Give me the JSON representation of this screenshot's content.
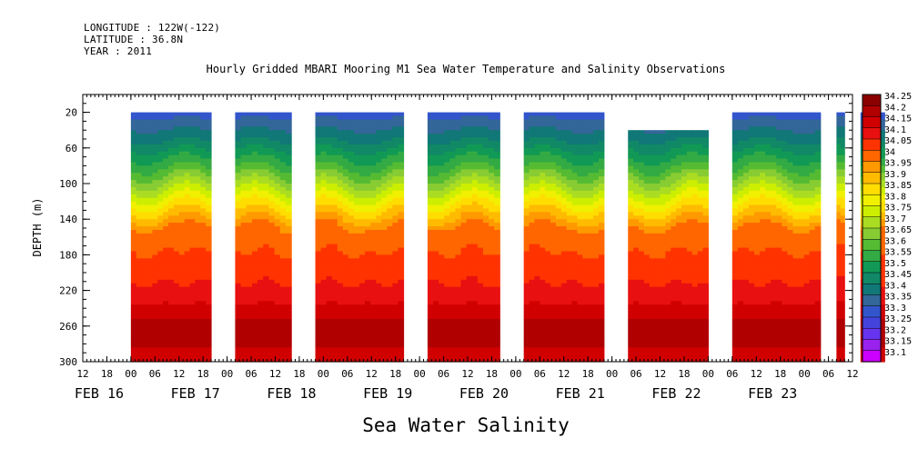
{
  "header": {
    "longitude": "LONGITUDE : 122W(-122)",
    "latitude": "LATITUDE : 36.8N",
    "year": "YEAR : 2011"
  },
  "chart_data": {
    "type": "heatmap",
    "title": "Hourly Gridded MBARI Mooring M1 Sea Water Temperature and Salinity Observations",
    "xlabel": "Sea Water Salinity",
    "ylabel": "DEPTH (m)",
    "ylim": [
      300,
      0
    ],
    "yticks": [
      "20",
      "60",
      "100",
      "140",
      "180",
      "220",
      "260",
      "300"
    ],
    "y_values": [
      20,
      60,
      100,
      140,
      180,
      220,
      260,
      300
    ],
    "x_hour_ticks": [
      "12",
      "18",
      "00",
      "06",
      "12",
      "18",
      "00",
      "06",
      "12",
      "18",
      "00",
      "06",
      "12",
      "18",
      "00",
      "06",
      "12",
      "18",
      "00",
      "06",
      "12",
      "18",
      "00",
      "06",
      "12",
      "18",
      "00",
      "06",
      "12",
      "18",
      "00",
      "06",
      "12"
    ],
    "date_labels": [
      {
        "label": "FEB 16",
        "day": 0
      },
      {
        "label": "FEB 17",
        "day": 1
      },
      {
        "label": "FEB 18",
        "day": 2
      },
      {
        "label": "FEB 19",
        "day": 3
      },
      {
        "label": "FEB 20",
        "day": 4
      },
      {
        "label": "FEB 21",
        "day": 5
      },
      {
        "label": "FEB 22",
        "day": 6
      },
      {
        "label": "FEB 23",
        "day": 7
      }
    ],
    "x_start_hours_before_feb16": -12,
    "x_end_hours_after_feb23": 12,
    "data_segments_hours": [
      {
        "start": 24,
        "end": 44,
        "top_depth": 20
      },
      {
        "start": 50,
        "end": 64,
        "top_depth": 20
      },
      {
        "start": 70,
        "end": 92,
        "top_depth": 20
      },
      {
        "start": 98,
        "end": 116,
        "top_depth": 20
      },
      {
        "start": 122,
        "end": 142,
        "top_depth": 20
      },
      {
        "start": 148,
        "end": 168,
        "top_depth": 40
      },
      {
        "start": 174,
        "end": 196,
        "top_depth": 20
      },
      {
        "start": 200,
        "end": 202,
        "top_depth": 20
      },
      {
        "start": 206,
        "end": 212,
        "top_depth": 20
      }
    ],
    "salinity_profile": [
      {
        "depth": 20,
        "value": 33.33
      },
      {
        "depth": 50,
        "value": 33.45
      },
      {
        "depth": 80,
        "value": 33.6
      },
      {
        "depth": 110,
        "value": 33.78
      },
      {
        "depth": 130,
        "value": 33.9
      },
      {
        "depth": 150,
        "value": 34.02
      },
      {
        "depth": 200,
        "value": 34.08
      },
      {
        "depth": 230,
        "value": 34.14
      },
      {
        "depth": 250,
        "value": 34.2
      },
      {
        "depth": 270,
        "value": 34.22
      },
      {
        "depth": 300,
        "value": 34.17
      }
    ],
    "colorbar": {
      "levels": [
        "34.25",
        "34.2",
        "34.15",
        "34.1",
        "34.05",
        "34",
        "33.95",
        "33.9",
        "33.85",
        "33.8",
        "33.75",
        "33.7",
        "33.65",
        "33.6",
        "33.55",
        "33.5",
        "33.45",
        "33.4",
        "33.35",
        "33.3",
        "33.25",
        "33.2",
        "33.15",
        "33.1"
      ],
      "colors": [
        "#8b0000",
        "#b00000",
        "#d10000",
        "#e81010",
        "#ff3300",
        "#ff6600",
        "#ff9900",
        "#ffbb00",
        "#ffdd00",
        "#f0f000",
        "#ccee00",
        "#aadd22",
        "#88cc33",
        "#55bb33",
        "#33aa44",
        "#119955",
        "#118866",
        "#117777",
        "#336699",
        "#3355cc",
        "#4444dd",
        "#6633ee",
        "#9922ee",
        "#cc00ff"
      ]
    }
  }
}
